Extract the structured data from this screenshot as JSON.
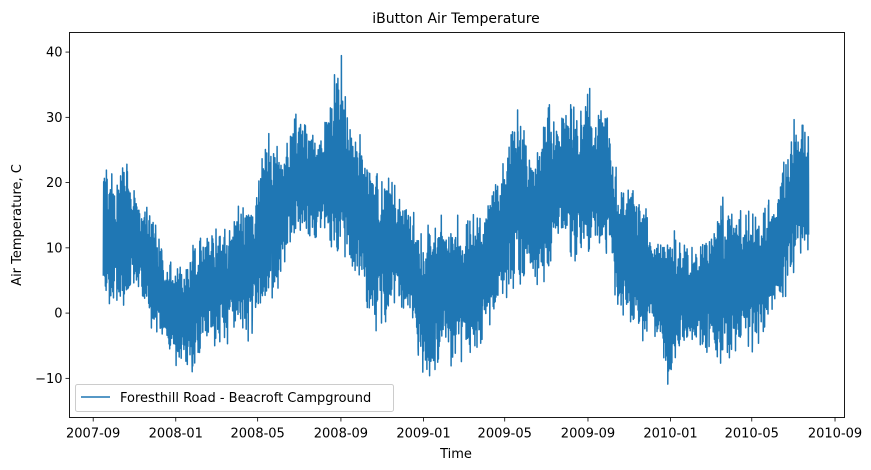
{
  "chart_data": {
    "type": "line",
    "title": "iButton Air Temperature",
    "xlabel": "Time",
    "ylabel": "Air Temperature, C",
    "x_origin_date": "2007-09-01",
    "xlim_days": [
      -35,
      1110
    ],
    "ylim": [
      -16,
      43
    ],
    "yticks": [
      -10,
      0,
      10,
      20,
      30,
      40
    ],
    "ytick_labels": [
      "−10",
      "0",
      "10",
      "20",
      "30",
      "40"
    ],
    "xticks": [
      {
        "label": "2007-09",
        "day": 0
      },
      {
        "label": "2008-01",
        "day": 122
      },
      {
        "label": "2008-05",
        "day": 243
      },
      {
        "label": "2008-09",
        "day": 366
      },
      {
        "label": "2009-01",
        "day": 488
      },
      {
        "label": "2009-05",
        "day": 608
      },
      {
        "label": "2009-09",
        "day": 731
      },
      {
        "label": "2010-01",
        "day": 853
      },
      {
        "label": "2010-05",
        "day": 973
      },
      {
        "label": "2010-09",
        "day": 1096
      }
    ],
    "grid": false,
    "legend": {
      "position": "lower-left",
      "entries": [
        "Foresthill Road - Beacroft Campground"
      ]
    },
    "series": [
      {
        "name": "Foresthill Road - Beacroft Campground",
        "color": "#1f77b4",
        "envelope_columns": [
          "day",
          "min",
          "max"
        ],
        "envelope": [
          [
            15,
            3,
            23
          ],
          [
            30,
            -1,
            21
          ],
          [
            45,
            0,
            24
          ],
          [
            61,
            4,
            20
          ],
          [
            75,
            0,
            17
          ],
          [
            91,
            -4,
            14
          ],
          [
            105,
            -5,
            8
          ],
          [
            122,
            -8,
            8
          ],
          [
            136,
            -9,
            8
          ],
          [
            153,
            -9,
            12
          ],
          [
            167,
            -5,
            14
          ],
          [
            182,
            -5,
            14
          ],
          [
            196,
            -5,
            14
          ],
          [
            213,
            -3,
            17
          ],
          [
            227,
            -6,
            19
          ],
          [
            243,
            0,
            19
          ],
          [
            257,
            1,
            29
          ],
          [
            274,
            4,
            25
          ],
          [
            288,
            10,
            27
          ],
          [
            304,
            11,
            33
          ],
          [
            318,
            11,
            29
          ],
          [
            335,
            12,
            28
          ],
          [
            349,
            10,
            34
          ],
          [
            366,
            7,
            40
          ],
          [
            380,
            6,
            30
          ],
          [
            396,
            3,
            27
          ],
          [
            410,
            -2,
            23
          ],
          [
            427,
            -4,
            23
          ],
          [
            441,
            0,
            22
          ],
          [
            457,
            1,
            17
          ],
          [
            471,
            -1,
            16
          ],
          [
            488,
            -11,
            12
          ],
          [
            502,
            -11,
            15
          ],
          [
            519,
            -6,
            15
          ],
          [
            533,
            -9,
            15
          ],
          [
            547,
            -7,
            15
          ],
          [
            561,
            -8,
            15
          ],
          [
            578,
            -3,
            17
          ],
          [
            592,
            -2,
            22
          ],
          [
            608,
            2,
            24
          ],
          [
            622,
            4,
            32
          ],
          [
            639,
            4,
            29
          ],
          [
            653,
            3,
            24
          ],
          [
            669,
            5,
            33
          ],
          [
            683,
            10,
            30
          ],
          [
            700,
            10,
            33
          ],
          [
            714,
            6,
            31
          ],
          [
            731,
            7,
            36
          ],
          [
            745,
            10,
            30
          ],
          [
            761,
            9,
            33
          ],
          [
            775,
            -2,
            20
          ],
          [
            792,
            -1,
            21
          ],
          [
            806,
            -5,
            20
          ],
          [
            822,
            -3,
            14
          ],
          [
            836,
            -4,
            11
          ],
          [
            853,
            -13,
            13
          ],
          [
            867,
            -7,
            12
          ],
          [
            884,
            -5,
            10
          ],
          [
            898,
            -6,
            11
          ],
          [
            912,
            -6,
            13
          ],
          [
            926,
            -8,
            18
          ],
          [
            943,
            -7,
            17
          ],
          [
            957,
            -6,
            16
          ],
          [
            973,
            -6,
            17
          ],
          [
            987,
            -5,
            16
          ],
          [
            1004,
            0,
            18
          ],
          [
            1018,
            1,
            22
          ],
          [
            1034,
            6,
            30
          ],
          [
            1048,
            10,
            30
          ],
          [
            1057,
            8,
            29
          ]
        ]
      }
    ]
  }
}
